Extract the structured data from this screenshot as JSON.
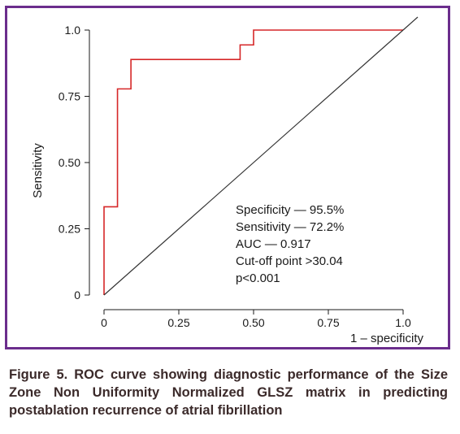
{
  "chart_data": {
    "type": "line",
    "title": "",
    "xlabel": "1 – specificity",
    "ylabel": "Sensitivity",
    "xlim": [
      0,
      1.0
    ],
    "ylim": [
      0,
      1.0
    ],
    "x_ticks": [
      0,
      0.25,
      0.5,
      0.75,
      1.0
    ],
    "x_tick_labels": [
      "0",
      "0.25",
      "0.50",
      "0.75",
      "1.0"
    ],
    "y_ticks": [
      0,
      0.25,
      0.5,
      0.75,
      1.0
    ],
    "y_tick_labels": [
      "0",
      "0.25",
      "0.50",
      "0.75",
      "1.0"
    ],
    "grid": false,
    "legend": "none",
    "series": [
      {
        "color": "#d62728",
        "x": [
          0,
          0,
          0.045,
          0.045,
          0.09,
          0.09,
          0.455,
          0.455,
          0.5,
          0.5,
          1.0
        ],
        "y": [
          0,
          0.333,
          0.333,
          0.778,
          0.778,
          0.889,
          0.889,
          0.944,
          0.944,
          1.0,
          1.0
        ]
      },
      {
        "color": "#333333",
        "x": [
          0,
          1.0
        ],
        "y": [
          0,
          1.0
        ]
      }
    ],
    "annotations": [
      "Specificity — 95.5%",
      "Sensitivity — 72.2%",
      "AUC — 0.917",
      "Cut-off point >30.04",
      "p<0.001"
    ]
  },
  "caption": "Figure 5. ROC curve showing diagnostic performance of the Size Zone Non Uniformity Normalized GLSZ matrix in predicting postablation recurrence of atrial fibrillation",
  "colors": {
    "frame": "#6b2d8c",
    "roc": "#d62728",
    "diagonal": "#333333",
    "caption": "#3b2a2a"
  }
}
